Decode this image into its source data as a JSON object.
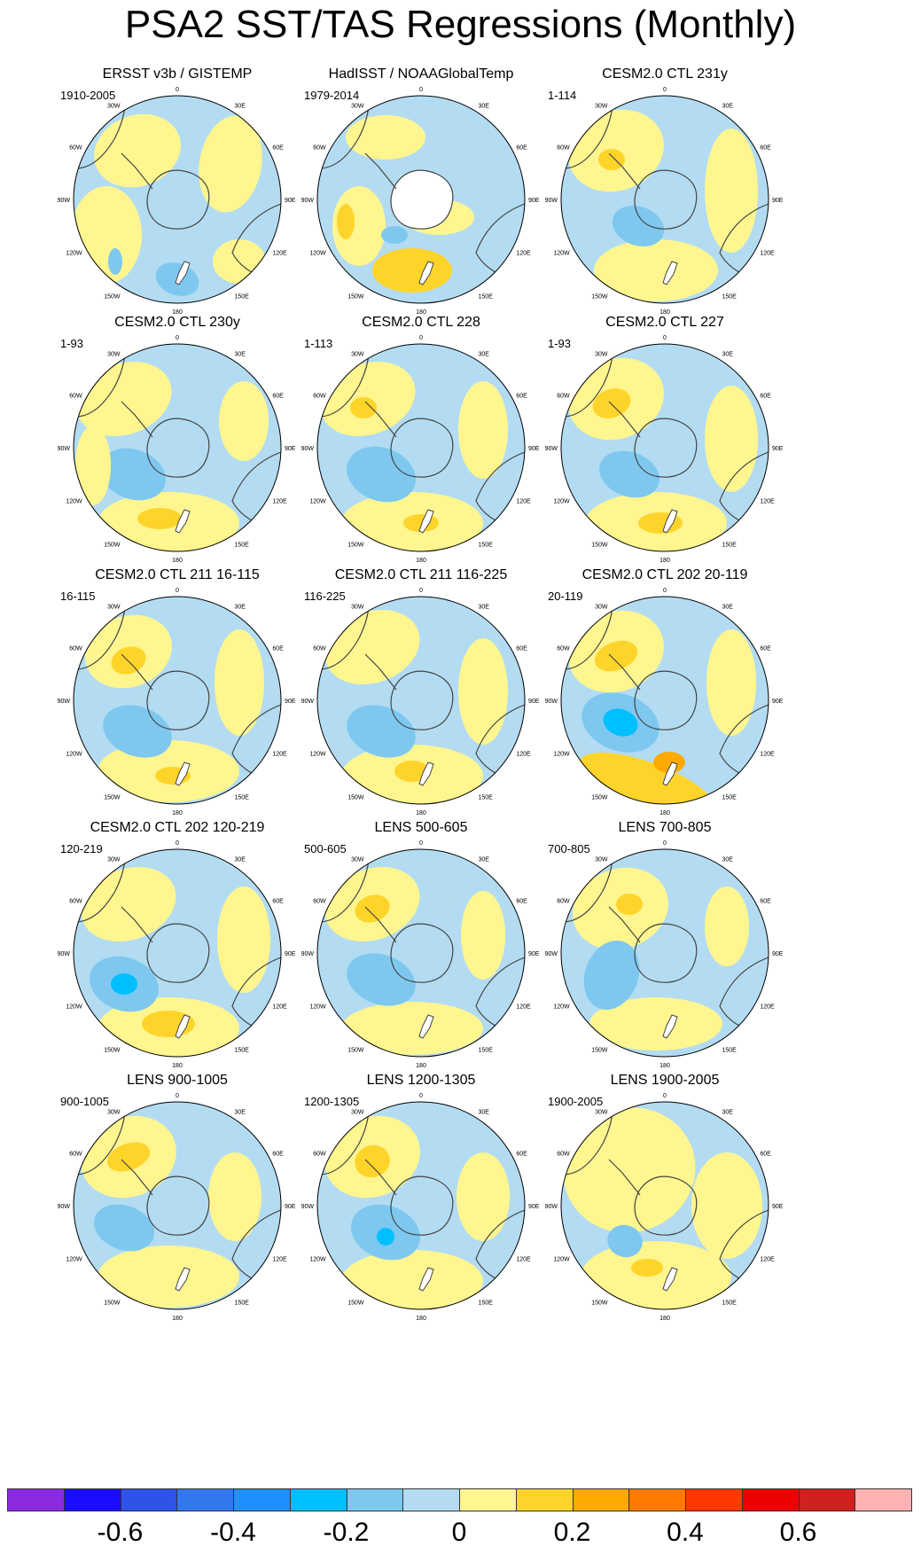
{
  "title": "PSA2 SST/TAS Regressions (Monthly)",
  "map_labels": {
    "top": "0",
    "top_left": "30W",
    "top_right": "30E",
    "upper_left": "60W",
    "upper_right": "60E",
    "left": "90W",
    "right": "90E",
    "lower_left": "120W",
    "lower_right": "120E",
    "bottom_left": "150W",
    "bottom_right": "150E",
    "bottom": "180"
  },
  "chart_data": {
    "type": "polar-stereographic contour map panels",
    "variable": "SST/TAS regression onto PSA2 (monthly)",
    "panels": [
      {
        "title": "ERSST v3b / GISTEMP",
        "range": "1910-2005"
      },
      {
        "title": "HadISST / NOAAGlobalTemp",
        "range": "1979-2014"
      },
      {
        "title": "CESM2.0 CTL 231y",
        "range": "1-114"
      },
      {
        "title": "CESM2.0 CTL 230y",
        "range": "1-93"
      },
      {
        "title": "CESM2.0 CTL 228",
        "range": "1-113"
      },
      {
        "title": "CESM2.0 CTL 227",
        "range": "1-93"
      },
      {
        "title": "CESM2.0 CTL 211 16-115",
        "range": "16-115"
      },
      {
        "title": "CESM2.0 CTL 211 116-225",
        "range": "116-225"
      },
      {
        "title": "CESM2.0 CTL 202 20-119",
        "range": "20-119"
      },
      {
        "title": "CESM2.0 CTL 202 120-219",
        "range": "120-219"
      },
      {
        "title": "LENS 500-605",
        "range": "500-605"
      },
      {
        "title": "LENS 700-805",
        "range": "700-805"
      },
      {
        "title": "LENS 900-1005",
        "range": "900-1005"
      },
      {
        "title": "LENS 1200-1305",
        "range": "1200-1305"
      },
      {
        "title": "LENS 1900-2005",
        "range": "1900-2005"
      }
    ],
    "colorbar": {
      "levels": [
        -0.7,
        -0.6,
        -0.5,
        -0.4,
        -0.3,
        -0.2,
        -0.1,
        0,
        0.1,
        0.2,
        0.3,
        0.4,
        0.5,
        0.6,
        0.7
      ],
      "colors": [
        "#8a2be2",
        "#1a0dff",
        "#2f52e8",
        "#3377ee",
        "#1e90ff",
        "#00bfff",
        "#7ec8f0",
        "#b3dcf2",
        "#fff68f",
        "#ffd42a",
        "#ffaa00",
        "#ff7a00",
        "#ff3800",
        "#ee0000",
        "#d02020",
        "#ffb2b2"
      ],
      "tick_labels": [
        "-0.6",
        "-0.4",
        "-0.2",
        "0",
        "0.2",
        "0.4",
        "0.6"
      ],
      "tick_values": [
        -0.6,
        -0.4,
        -0.2,
        0,
        0.2,
        0.4,
        0.6
      ]
    }
  }
}
